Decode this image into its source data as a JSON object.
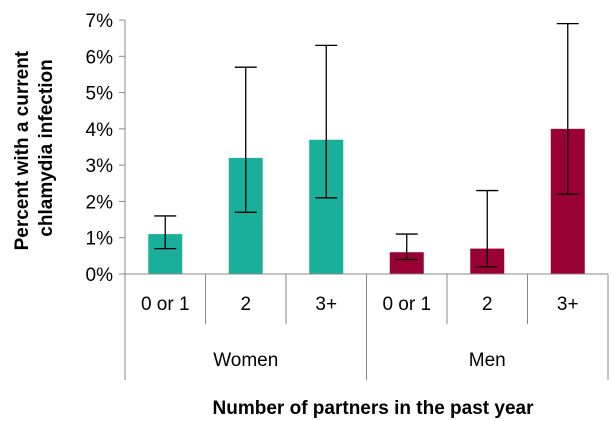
{
  "chart_data": {
    "type": "bar",
    "ylabel_lines": [
      "Percent with a current",
      "chlamydia infection"
    ],
    "xlabel": "Number of partners in the past year",
    "ylim": [
      0,
      7
    ],
    "yticks": [
      "0%",
      "1%",
      "2%",
      "3%",
      "4%",
      "5%",
      "6%",
      "7%"
    ],
    "groups": [
      {
        "name": "Women",
        "color": "#1aaf9a",
        "categories": [
          "0 or 1",
          "2",
          "3+"
        ],
        "values": [
          1.1,
          3.2,
          3.7
        ],
        "err_low": [
          0.7,
          1.7,
          2.1
        ],
        "err_high": [
          1.6,
          5.7,
          6.3
        ]
      },
      {
        "name": "Men",
        "color": "#990033",
        "categories": [
          "0 or 1",
          "2",
          "3+"
        ],
        "values": [
          0.6,
          0.7,
          4.0
        ],
        "err_low": [
          0.4,
          0.2,
          2.2
        ],
        "err_high": [
          1.1,
          2.3,
          6.9
        ]
      }
    ],
    "grid": false,
    "legend": "none"
  }
}
